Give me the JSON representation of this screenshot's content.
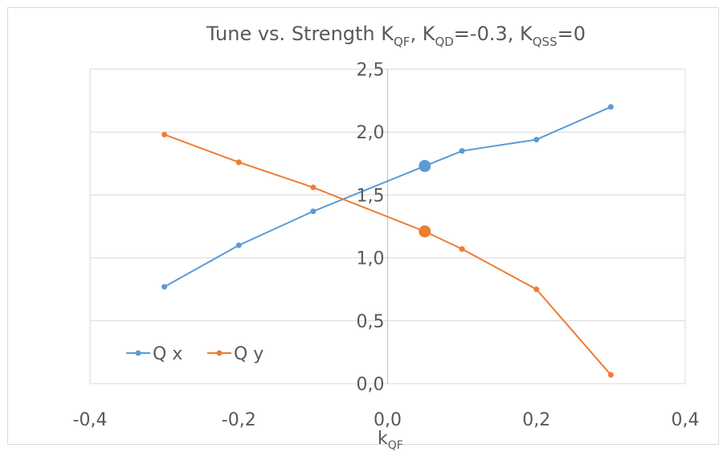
{
  "chart_data": {
    "type": "scatter",
    "title": {
      "main": "Tune vs. Strength K",
      "sub1": "QF",
      "mid1": ",  K",
      "sub2": "QD",
      "mid2": "=-0.3, K",
      "sub3": "QSS",
      "end": "=0"
    },
    "xlabel": {
      "main": "k",
      "sub": "QF"
    },
    "ylabel": "",
    "xlim": [
      -0.4,
      0.4
    ],
    "ylim": [
      0.0,
      2.5
    ],
    "x_ticks": [
      -0.4,
      -0.2,
      0.0,
      0.2,
      0.4
    ],
    "x_tick_labels": [
      "-0,4",
      "-0,2",
      "0,0",
      "0,2",
      "0,4"
    ],
    "y_ticks": [
      0.0,
      0.5,
      1.0,
      1.5,
      2.0,
      2.5
    ],
    "y_tick_labels": [
      "0,0",
      "0,5",
      "1,0",
      "1,5",
      "2,0",
      "2,5"
    ],
    "grid": "horizontal",
    "legend_position": "bottom-left",
    "series": [
      {
        "name": "Q x",
        "color": "#5b9bd5",
        "x": [
          -0.3,
          -0.2,
          -0.1,
          0.05,
          0.1,
          0.2,
          0.3
        ],
        "y": [
          0.77,
          1.1,
          1.37,
          1.73,
          1.85,
          1.94,
          2.2
        ],
        "highlight_index": 3
      },
      {
        "name": "Q y",
        "color": "#ed7d31",
        "x": [
          -0.3,
          -0.2,
          -0.1,
          0.05,
          0.1,
          0.2,
          0.3
        ],
        "y": [
          1.98,
          1.76,
          1.56,
          1.21,
          1.07,
          0.75,
          0.07
        ],
        "highlight_index": 3
      }
    ]
  }
}
